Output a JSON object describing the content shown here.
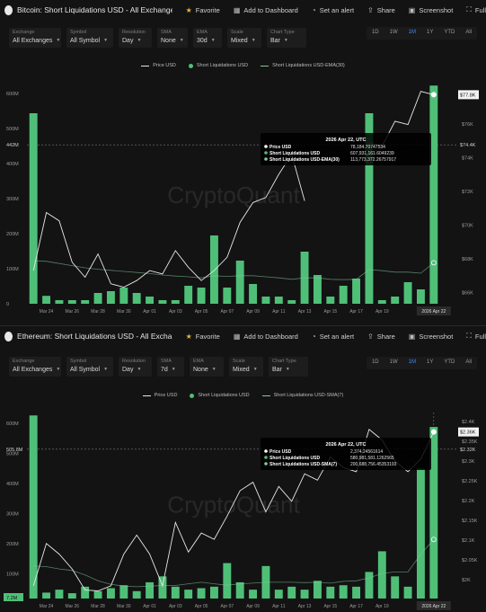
{
  "panels": [
    {
      "id": "btc",
      "title": "Bitcoin: Short Liquidations USD - All Exchanges, All ...",
      "toolbar": {
        "favorite": "Favorite",
        "dashboard": "Add to Dashboard",
        "alert": "Set an alert",
        "share": "Share",
        "screenshot": "Screenshot",
        "full": "Full"
      },
      "controls": [
        {
          "label": "Exchange",
          "value": "All Exchanges"
        },
        {
          "label": "Symbol",
          "value": "All Symbol"
        },
        {
          "label": "Resolution",
          "value": "Day"
        },
        {
          "label": "SMA",
          "value": "None"
        },
        {
          "label": "EMA",
          "value": "30d"
        },
        {
          "label": "Scale",
          "value": "Mixed"
        },
        {
          "label": "Chart Type",
          "value": "Bar"
        }
      ],
      "ranges": [
        "1D",
        "1W",
        "1M",
        "1Y",
        "YTD",
        "All"
      ],
      "active_range": "1M",
      "legend": [
        "Price USD",
        "Short Liquidations USD",
        "Short Liquidations USD-EMA(30)"
      ],
      "watermark": "CryptoQuant",
      "tooltip": {
        "date": "2026 Apr 22, UTC",
        "rows": [
          {
            "label": "Price USD",
            "value": "78,184.70747534"
          },
          {
            "label": "Short Liquidations USD",
            "value": "607,931,161.6049239"
          },
          {
            "label": "Short Liquidations USD-EMA(30)",
            "value": "113,773,372.26757917"
          }
        ]
      },
      "chart_data": {
        "type": "bar",
        "x_labels": [
          "Mar 24",
          "Mar 26",
          "Mar 28",
          "Mar 30",
          "Apr 01",
          "Apr 03",
          "Apr 05",
          "Apr 07",
          "Apr 09",
          "Apr 11",
          "Apr 13",
          "Apr 15",
          "Apr 17",
          "Apr 19",
          "2026 Apr 22"
        ],
        "y_ticks": [
          "600M",
          "500M",
          "400M",
          "300M",
          "200M",
          "100M",
          "0"
        ],
        "y_right_ticks": [
          "$76K",
          "$74K",
          "$72K",
          "$70K",
          "$68K",
          "$66K"
        ],
        "ylim": [
          0,
          600
        ],
        "y2lim": [
          65000,
          78000
        ],
        "marker_left": "442M",
        "marker_right_top": "$77.8K",
        "marker_right_mid": "$74.4K",
        "marker_value": 442,
        "series": [
          {
            "name": "Short Liquidations USD",
            "values": [
              530,
              22,
              10,
              10,
              10,
              30,
              35,
              45,
              30,
              20,
              10,
              10,
              50,
              45,
              190,
              45,
              120,
              55,
              20,
              20,
              10,
              145,
              80,
              20,
              50,
              70,
              530,
              10,
              20,
              60,
              40,
              607
            ]
          },
          {
            "name": "Price USD",
            "values": [
              67000,
              70500,
              70000,
              67500,
              66600,
              68000,
              66200,
              66000,
              66400,
              67000,
              66800,
              68200,
              67200,
              66400,
              67000,
              67800,
              69900,
              71100,
              71400,
              72800,
              74000,
              71200,
              null,
              null,
              null,
              null,
              74700,
              74500,
              76000,
              75800,
              77800,
              77600
            ]
          },
          {
            "name": "Short Liquidations USD-EMA(30)",
            "values": [
              120,
              118,
              112,
              106,
              100,
              96,
              93,
              90,
              87,
              84,
              80,
              77,
              75,
              72,
              78,
              76,
              78,
              78,
              75,
              72,
              68,
              72,
              72,
              68,
              67,
              68,
              95,
              92,
              88,
              88,
              85,
              114
            ]
          }
        ]
      }
    },
    {
      "id": "eth",
      "title": "Ethereum: Short Liquidations USD - All Exchanges, ...",
      "toolbar": {
        "favorite": "Favorite",
        "dashboard": "Add to Dashboard",
        "alert": "Set an alert",
        "share": "Share",
        "screenshot": "Screenshot",
        "full": "Full"
      },
      "controls": [
        {
          "label": "Exchange",
          "value": "All Exchanges"
        },
        {
          "label": "Symbol",
          "value": "All Symbol"
        },
        {
          "label": "Resolution",
          "value": "Day"
        },
        {
          "label": "SMA",
          "value": "7d"
        },
        {
          "label": "EMA",
          "value": "None"
        },
        {
          "label": "Scale",
          "value": "Mixed"
        },
        {
          "label": "Chart Type",
          "value": "Bar"
        }
      ],
      "ranges": [
        "1D",
        "1W",
        "1M",
        "1Y",
        "YTD",
        "All"
      ],
      "active_range": "1M",
      "legend": [
        "Price USD",
        "Short Liquidations USD",
        "Short Liquidations USD-SMA(7)"
      ],
      "watermark": "CryptoQuant",
      "tooltip": {
        "date": "2026 Apr 22, UTC",
        "rows": [
          {
            "label": "Price USD",
            "value": "2,374.24561614"
          },
          {
            "label": "Short Liquidations USD",
            "value": "580,981,581.1262565"
          },
          {
            "label": "Short Liquidations USD-SMA(7)",
            "value": "200,688,756.45353193"
          }
        ]
      },
      "chart_data": {
        "type": "bar",
        "x_labels": [
          "Mar 24",
          "Mar 26",
          "Mar 28",
          "Mar 30",
          "Apr 01",
          "Apr 03",
          "Apr 05",
          "Apr 07",
          "Apr 09",
          "Apr 11",
          "Apr 13",
          "Apr 15",
          "Apr 17",
          "Apr 19",
          "2026 Apr 22"
        ],
        "y_ticks": [
          "600M",
          "500M",
          "400M",
          "300M",
          "200M",
          "100M"
        ],
        "y_right_ticks": [
          "$2.4K",
          "$2.35K",
          "$2.3K",
          "$2.25K",
          "$2.2K",
          "$2.15K",
          "$2.1K",
          "$2.05K",
          "$2K"
        ],
        "ylim": [
          0,
          630
        ],
        "y2lim": [
          1980,
          2420
        ],
        "marker_left": "505.8M",
        "marker_left_bottom": "7.2M",
        "marker_right_top": "$2.36K",
        "marker_right_mid": "$2.32K",
        "marker_value": 505.8,
        "series": [
          {
            "name": "Short Liquidations USD",
            "values": [
              620,
              20,
              30,
              18,
              40,
              25,
              35,
              45,
              25,
              55,
              75,
              40,
              30,
              35,
              40,
              120,
              55,
              30,
              110,
              30,
              40,
              30,
              60,
              40,
              45,
              40,
              90,
              160,
              75,
              40,
              440,
              581
            ]
          },
          {
            "name": "Price USD",
            "values": [
              2010,
              2110,
              2085,
              2050,
              2000,
              1998,
              2010,
              2085,
              2130,
              2085,
              2010,
              2160,
              2090,
              2135,
              2120,
              2175,
              2235,
              2255,
              2185,
              2245,
              2210,
              2275,
              2260,
              2315,
              2290,
              2280,
              2380,
              2355,
              2305,
              2280,
              2310,
              2374
            ]
          },
          {
            "name": "Short Liquidations USD-SMA(7)",
            "values": [
              110,
              108,
              100,
              95,
              80,
              60,
              48,
              42,
              40,
              42,
              44,
              44,
              50,
              55,
              50,
              45,
              50,
              52,
              55,
              55,
              55,
              54,
              55,
              52,
              58,
              60,
              70,
              85,
              90,
              90,
              150,
              200
            ]
          }
        ]
      }
    }
  ],
  "colors": {
    "bar": "#4fbf78",
    "price": "#e8e8e8",
    "ema": "#86c79b",
    "accent": "#3d8bff",
    "star": "#e8b82a",
    "bg": "#131313"
  }
}
